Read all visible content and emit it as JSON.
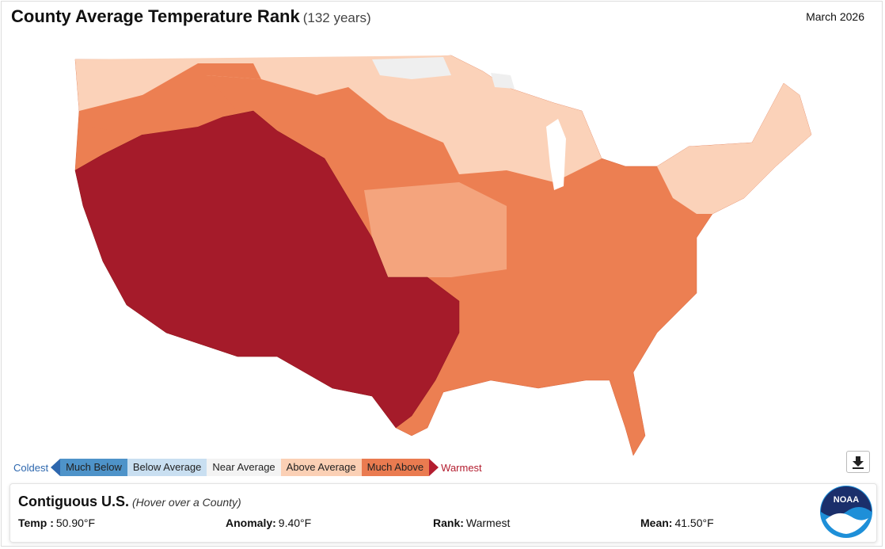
{
  "header": {
    "title": "County Average Temperature Rank",
    "subtitle": "(132 years)",
    "date": "March 2026"
  },
  "legend": {
    "low": "Coldest",
    "high": "Warmest",
    "classes": [
      "Much Below",
      "Below Average",
      "Near Average",
      "Above Average",
      "Much Above"
    ]
  },
  "info": {
    "title": "Contiguous U.S.",
    "hint": "(Hover over a County)",
    "fields": [
      {
        "label": "Temp :",
        "value": "50.90°F"
      },
      {
        "label": "Anomaly:",
        "value": "9.40°F"
      },
      {
        "label": "Rank:",
        "value": "Warmest"
      },
      {
        "label": "Mean:",
        "value": "41.50°F"
      }
    ]
  },
  "logo": "NOAA"
}
